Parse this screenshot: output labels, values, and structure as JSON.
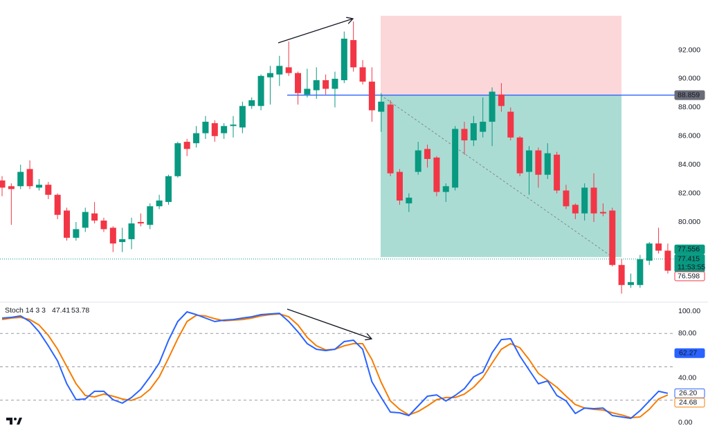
{
  "chart_data": [
    {
      "type": "candlestick",
      "open": [
        82.9,
        82.5,
        82.5,
        83.7,
        82.4,
        82.6,
        81.9,
        80.8,
        78.9,
        79.6,
        80.6,
        80.1,
        79.6,
        78.6,
        78.8,
        80.0,
        79.8,
        81.1,
        81.4,
        83.2,
        85.6,
        85.5,
        86.2,
        86.9,
        86.2,
        86.7,
        86.6,
        88.1,
        88.1,
        90.1,
        90.3,
        90.8,
        90.4,
        88.9,
        89.2,
        89.9,
        89.3,
        89.9,
        92.7,
        90.8,
        89.8,
        87.7,
        88.2,
        83.5,
        81.3,
        83.5,
        85.1,
        84.5,
        82.1,
        82.4,
        86.5,
        85.7,
        86.3,
        87.0,
        88.9,
        87.7,
        85.9,
        83.5,
        85.0,
        83.3,
        84.7,
        82.2,
        81.2,
        80.6,
        82.4,
        80.7,
        80.8,
        77.0,
        75.6,
        75.6,
        77.3,
        78.5,
        78.0
      ],
      "high": [
        83.2,
        82.7,
        84.0,
        84.3,
        83.0,
        82.8,
        82.0,
        81.0,
        80.0,
        81.0,
        81.4,
        80.3,
        79.7,
        79.6,
        80.3,
        80.6,
        81.3,
        81.9,
        83.3,
        85.6,
        85.8,
        86.7,
        87.4,
        87.1,
        86.9,
        87.4,
        88.4,
        88.7,
        90.3,
        90.9,
        91.6,
        92.6,
        90.5,
        90.7,
        90.8,
        90.3,
        90.5,
        93.3,
        94.0,
        91.3,
        90.8,
        89.0,
        88.5,
        83.7,
        82.0,
        85.6,
        85.4,
        84.6,
        82.7,
        86.7,
        87.0,
        87.4,
        88.7,
        89.4,
        89.7,
        88.0,
        86.0,
        85.3,
        85.2,
        85.5,
        84.9,
        82.6,
        81.3,
        82.7,
        83.4,
        81.3,
        81.0,
        77.4,
        76.4,
        77.7,
        78.6,
        79.6,
        78.5
      ],
      "low": [
        81.8,
        79.8,
        82.3,
        82.3,
        82.2,
        81.6,
        80.2,
        78.7,
        78.7,
        79.3,
        79.9,
        79.3,
        77.9,
        77.9,
        78.1,
        79.7,
        79.5,
        80.9,
        81.2,
        83.1,
        84.6,
        85.2,
        85.8,
        85.6,
        85.8,
        85.9,
        86.2,
        87.9,
        87.8,
        88.2,
        89.5,
        90.2,
        88.2,
        88.7,
        88.6,
        88.9,
        88.0,
        89.7,
        90.5,
        89.6,
        87.0,
        86.3,
        83.2,
        81.2,
        80.7,
        83.3,
        83.8,
        81.8,
        81.4,
        82.2,
        84.7,
        85.3,
        85.9,
        85.3,
        87.7,
        85.7,
        83.2,
        81.9,
        82.4,
        83.0,
        82.0,
        80.9,
        80.2,
        80.1,
        80.0,
        80.4,
        76.9,
        75.0,
        75.4,
        75.4,
        77.0,
        77.8,
        76.4
      ],
      "close": [
        82.4,
        82.3,
        83.5,
        82.5,
        82.6,
        81.9,
        80.5,
        78.9,
        79.5,
        80.7,
        80.1,
        79.5,
        78.5,
        78.8,
        79.9,
        79.9,
        81.1,
        81.5,
        83.2,
        85.5,
        85.1,
        86.2,
        87.0,
        86.0,
        86.7,
        86.8,
        88.1,
        88.5,
        90.2,
        90.4,
        90.9,
        90.4,
        89.0,
        89.3,
        89.9,
        89.3,
        90.0,
        92.8,
        90.8,
        89.8,
        87.8,
        88.4,
        83.4,
        81.5,
        81.7,
        85.0,
        84.4,
        82.1,
        82.5,
        86.5,
        85.7,
        86.9,
        87.0,
        89.1,
        88.1,
        85.9,
        83.4,
        85.0,
        83.3,
        84.8,
        82.2,
        81.1,
        80.6,
        82.4,
        80.6,
        80.6,
        77.0,
        75.6,
        75.8,
        77.4,
        78.5,
        78.0,
        76.6
      ],
      "up_color": "#089981",
      "down_color": "#f23645",
      "ylim": [
        74.5,
        95.5
      ],
      "yticks": [
        {
          "value": 80,
          "label": "80.000"
        },
        {
          "value": 82,
          "label": "82.000"
        },
        {
          "value": 84,
          "label": "84.000"
        },
        {
          "value": 86,
          "label": "86.000"
        },
        {
          "value": 88,
          "label": "88.000"
        },
        {
          "value": 90,
          "label": "90.000"
        },
        {
          "value": 92,
          "label": "92.000"
        }
      ],
      "position": {
        "stop": 94.4,
        "entry": 88.859,
        "target": 77.55
      },
      "price_labels": [
        {
          "value": 88.859,
          "label": "88.859",
          "bg": "#6a6d78",
          "fg": "#ffffff"
        },
        {
          "value": 77.556,
          "label": "77.556",
          "bg": "#089981",
          "fg": "#ffffff"
        },
        {
          "value": 77.415,
          "label": "77.415",
          "bg": "#089981",
          "fg": "#ffffff",
          "countdown": "11:53:55"
        },
        {
          "value": 76.598,
          "label": "76.598",
          "bg": "#ffffff",
          "fg": "#f23645"
        }
      ]
    },
    {
      "type": "line",
      "title": "Stoch 14 3 3",
      "header_values": [
        {
          "value": 47.41,
          "label": "47.41",
          "color": "#2962ff"
        },
        {
          "value": 53.78,
          "label": "53.78",
          "color": "#f57c00"
        }
      ],
      "series": [
        {
          "name": "%K",
          "color": "#2962ff",
          "values": [
            93.8,
            94.4,
            95.7,
            90.7,
            81.4,
            68.9,
            55.3,
            34.8,
            20.5,
            21.1,
            28.0,
            28.0,
            20.5,
            17.4,
            22.4,
            29.8,
            41.0,
            53.4,
            73.9,
            90.7,
            99.4,
            96.9,
            93.8,
            90.7,
            91.9,
            92.5,
            93.8,
            95.0,
            96.9,
            97.5,
            98.1,
            90.7,
            81.4,
            70.8,
            65.8,
            64.6,
            65.8,
            72.7,
            73.9,
            65.8,
            36.6,
            22.4,
            9.3,
            8.7,
            6.2,
            14.9,
            23.6,
            24.8,
            19.3,
            24.2,
            30.4,
            41.0,
            45.3,
            62.7,
            74.5,
            75.2,
            59.6,
            47.2,
            34.8,
            37.3,
            24.2,
            19.3,
            8.1,
            13.0,
            12.4,
            13.0,
            6.2,
            5.0,
            3.7,
            10.6,
            19.3,
            28.0,
            26.2
          ]
        },
        {
          "name": "%D",
          "color": "#f57c00",
          "values": [
            92.5,
            93.8,
            94.4,
            92.5,
            87.6,
            78.3,
            65.8,
            50.3,
            34.8,
            24.2,
            23.0,
            25.5,
            23.6,
            21.1,
            19.9,
            23.0,
            29.8,
            41.0,
            57.8,
            75.2,
            90.7,
            96.3,
            95.7,
            93.2,
            91.3,
            91.9,
            92.5,
            93.8,
            95.7,
            96.9,
            97.5,
            95.0,
            87.6,
            76.4,
            68.9,
            65.2,
            65.8,
            68.9,
            70.8,
            70.8,
            56.5,
            36.0,
            19.3,
            11.8,
            6.8,
            9.9,
            14.9,
            20.5,
            22.4,
            22.4,
            25.5,
            31.7,
            40.4,
            53.4,
            65.8,
            70.8,
            67.1,
            56.5,
            44.1,
            37.9,
            31.7,
            23.6,
            16.1,
            13.0,
            11.8,
            11.2,
            8.7,
            6.8,
            4.3,
            5.0,
            11.8,
            21.1,
            24.7
          ]
        }
      ],
      "ylim": [
        0,
        100
      ],
      "yticks": [
        {
          "value": 0,
          "label": "0.00"
        },
        {
          "value": 40,
          "label": "40.00"
        },
        {
          "value": 80,
          "label": "80.00"
        },
        {
          "value": 100,
          "label": "100.00"
        }
      ],
      "bands": [
        20,
        50,
        80
      ],
      "value_tags": [
        {
          "value": 62.27,
          "label": "62.27",
          "bg": "#2962ff",
          "fg": "#ffffff"
        },
        {
          "value": 26.2,
          "label": "26.20",
          "bg": "#ffffff",
          "fg": "#2962ff"
        },
        {
          "value": 24.68,
          "label": "24.68",
          "bg": "#ffffff",
          "fg": "#f57c00"
        }
      ]
    }
  ]
}
